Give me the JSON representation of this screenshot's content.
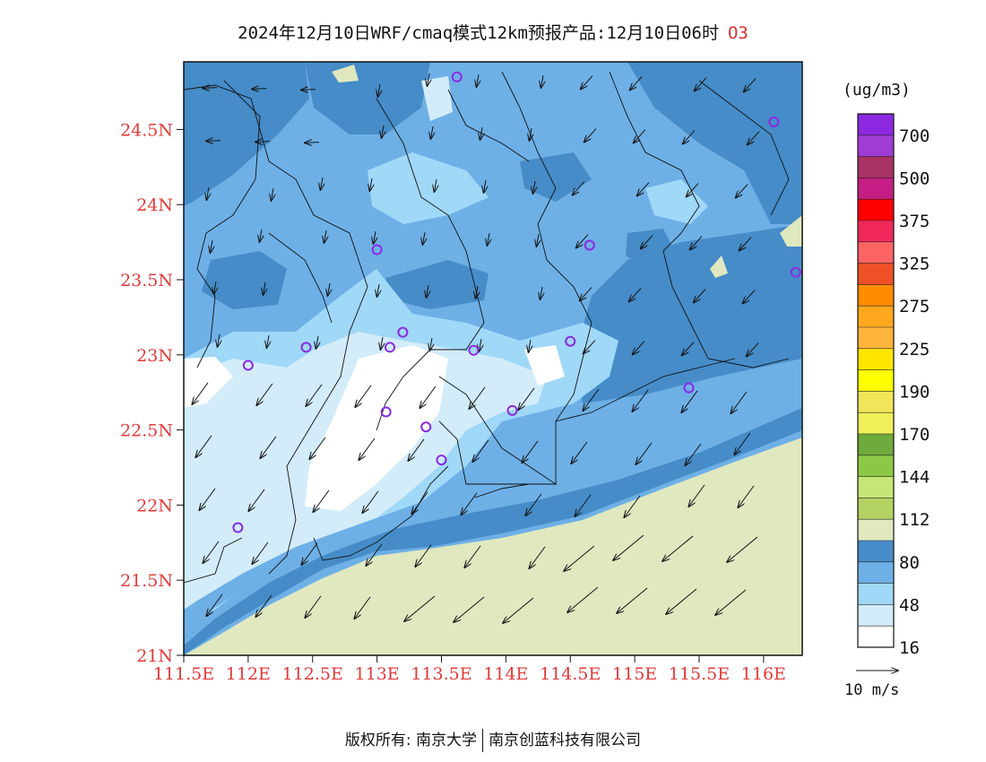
{
  "title": {
    "text": "2024年12月10日WRF/cmaq模式12km预报产品:12月10日06时",
    "species": "O3"
  },
  "legend": {
    "unit": "(ug/m3)",
    "labels": [
      "700",
      "500",
      "375",
      "325",
      "275",
      "225",
      "190",
      "170",
      "144",
      "112",
      "80",
      "48",
      "16"
    ],
    "colors": [
      "#8c28e0",
      "#a03cd6",
      "#a83262",
      "#c41e84",
      "#ff0000",
      "#f0285a",
      "#ff6464",
      "#f05028",
      "#ff8c00",
      "#ffa81e",
      "#ffb43c",
      "#ffe600",
      "#ffff00",
      "#f0e65a",
      "#f0f05a",
      "#6eaa3c",
      "#8cc846",
      "#c8e678",
      "#b4d264",
      "#e0e8c0",
      "#468cc8",
      "#6eb0e6",
      "#a0d8f8",
      "#d2ecfa",
      "#ffffff"
    ]
  },
  "axes": {
    "x_ticks": [
      "111.5E",
      "112E",
      "112.5E",
      "113E",
      "113.5E",
      "114E",
      "114.5E",
      "115E",
      "115.5E",
      "116E"
    ],
    "y_ticks": [
      "24.5N",
      "24N",
      "23.5N",
      "23N",
      "22.5N",
      "22N",
      "21.5N",
      "21N"
    ],
    "x_range": [
      111.5,
      116.3
    ],
    "y_range": [
      21.0,
      24.95
    ]
  },
  "wind_scale": {
    "label": "10 m/s"
  },
  "footer": {
    "left": "版权所有: 南京大学",
    "right": "南京创蓝科技有限公司"
  },
  "colors": {
    "sea": "#e0e8c0",
    "band_dark": "#468cc8",
    "band_mid": "#6eb0e6",
    "band_light": "#a0d8f8",
    "band_pale": "#d2ecfa",
    "station": "#8a2be2",
    "tick_text": "#e23a3a"
  },
  "stations": [
    {
      "lon": 113.62,
      "lat": 24.85
    },
    {
      "lon": 116.08,
      "lat": 24.55
    },
    {
      "lon": 113.0,
      "lat": 23.7
    },
    {
      "lon": 114.65,
      "lat": 23.73
    },
    {
      "lon": 116.25,
      "lat": 23.55
    },
    {
      "lon": 112.45,
      "lat": 23.05
    },
    {
      "lon": 113.1,
      "lat": 23.05
    },
    {
      "lon": 113.2,
      "lat": 23.15
    },
    {
      "lon": 113.75,
      "lat": 23.03
    },
    {
      "lon": 114.5,
      "lat": 23.09
    },
    {
      "lon": 112.0,
      "lat": 22.93
    },
    {
      "lon": 115.42,
      "lat": 22.78
    },
    {
      "lon": 113.07,
      "lat": 22.62
    },
    {
      "lon": 114.05,
      "lat": 22.63
    },
    {
      "lon": 113.38,
      "lat": 22.52
    },
    {
      "lon": 113.5,
      "lat": 22.3
    },
    {
      "lon": 111.92,
      "lat": 21.85
    }
  ]
}
